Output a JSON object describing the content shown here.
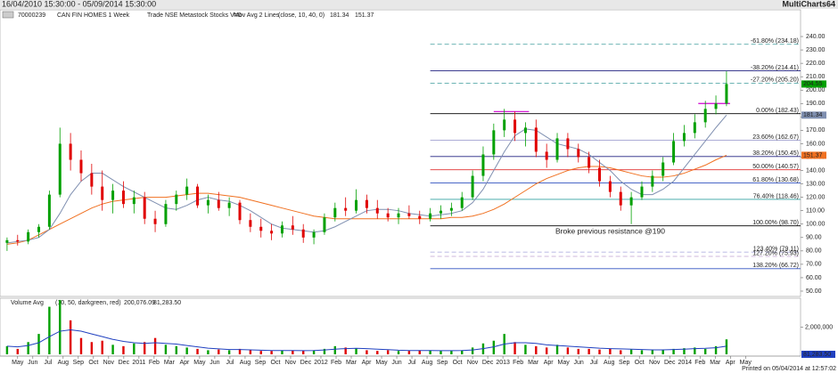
{
  "header": {
    "range": "16/04/2010 15:30:00 - 05/09/2014 15:30:00",
    "app": "MultiCharts64"
  },
  "footer": "Printed on 05/04/2014 at 12:57:02",
  "chart_data": {
    "type": "candlestick",
    "legend": {
      "id": "70000239",
      "symbol": "CAN FIN HOMES 1 Week",
      "source": "Trade NSE Metastock Stocks V=0",
      "study": "Mov Avg 2 Lines",
      "params": "(close, 10, 40, 0)"
    },
    "annotation": "Broke previous resistance @190",
    "xlim": [
      0,
      227
    ],
    "xticks": [
      {
        "value": 5,
        "label": "May"
      },
      {
        "value": 9.3,
        "label": "Jun"
      },
      {
        "value": 13.6,
        "label": "Jul"
      },
      {
        "value": 17.9,
        "label": "Aug"
      },
      {
        "value": 22.2,
        "label": "Sep"
      },
      {
        "value": 26.5,
        "label": "Oct"
      },
      {
        "value": 30.8,
        "label": "Nov"
      },
      {
        "value": 35.1,
        "label": "Dec"
      },
      {
        "value": 39.4,
        "label": "2011"
      },
      {
        "value": 43.7,
        "label": "Feb"
      },
      {
        "value": 48,
        "label": "Mar"
      },
      {
        "value": 52.3,
        "label": "Apr"
      },
      {
        "value": 56.6,
        "label": "May"
      },
      {
        "value": 60.9,
        "label": "Jun"
      },
      {
        "value": 65.2,
        "label": "Jul"
      },
      {
        "value": 69.5,
        "label": "Aug"
      },
      {
        "value": 73.8,
        "label": "Sep"
      },
      {
        "value": 78.1,
        "label": "Oct"
      },
      {
        "value": 82.4,
        "label": "Nov"
      },
      {
        "value": 86.7,
        "label": "Dec"
      },
      {
        "value": 91,
        "label": "2012"
      },
      {
        "value": 95.3,
        "label": "Feb"
      },
      {
        "value": 99.6,
        "label": "Mar"
      },
      {
        "value": 103.9,
        "label": "Apr"
      },
      {
        "value": 108.2,
        "label": "May"
      },
      {
        "value": 112.5,
        "label": "Jun"
      },
      {
        "value": 116.8,
        "label": "Jul"
      },
      {
        "value": 121.1,
        "label": "Aug"
      },
      {
        "value": 125.4,
        "label": "Sep"
      },
      {
        "value": 129.7,
        "label": "Oct"
      },
      {
        "value": 134,
        "label": "Nov"
      },
      {
        "value": 138.3,
        "label": "Dec"
      },
      {
        "value": 142.6,
        "label": "2013"
      },
      {
        "value": 146.9,
        "label": "Feb"
      },
      {
        "value": 151.2,
        "label": "Mar"
      },
      {
        "value": 155.5,
        "label": "Apr"
      },
      {
        "value": 159.8,
        "label": "May"
      },
      {
        "value": 164.1,
        "label": "Jun"
      },
      {
        "value": 168.4,
        "label": "Jul"
      },
      {
        "value": 172.7,
        "label": "Aug"
      },
      {
        "value": 177,
        "label": "Sep"
      },
      {
        "value": 181.3,
        "label": "Oct"
      },
      {
        "value": 185.6,
        "label": "Nov"
      },
      {
        "value": 189.9,
        "label": "Dec"
      },
      {
        "value": 194.2,
        "label": "2014"
      },
      {
        "value": 198.5,
        "label": "Feb"
      },
      {
        "value": 202.8,
        "label": "Mar"
      },
      {
        "value": 207.1,
        "label": "Apr"
      },
      {
        "value": 211.4,
        "label": "May"
      }
    ],
    "ylim": [
      50,
      245
    ],
    "yticks": [
      {
        "value": 240,
        "label": "240.00"
      },
      {
        "value": 230,
        "label": "230.00"
      },
      {
        "value": 220,
        "label": "220.00"
      },
      {
        "value": 210,
        "label": "210.00"
      },
      {
        "value": 200,
        "label": "200.00"
      },
      {
        "value": 190,
        "label": "190.00"
      },
      {
        "value": 180,
        "label": "180.00"
      },
      {
        "value": 170,
        "label": "170.00"
      },
      {
        "value": 160,
        "label": "160.00"
      },
      {
        "value": 150,
        "label": "150.00"
      },
      {
        "value": 140,
        "label": "140.00"
      },
      {
        "value": 130,
        "label": "130.00"
      },
      {
        "value": 120,
        "label": "120.00"
      },
      {
        "value": 110,
        "label": "110.00"
      },
      {
        "value": 100,
        "label": "100.00"
      },
      {
        "value": 90,
        "label": "90.00"
      },
      {
        "value": 80,
        "label": "80.00"
      },
      {
        "value": 70,
        "label": "70.00"
      },
      {
        "value": 60,
        "label": "60.00"
      },
      {
        "value": 50,
        "label": "50.00"
      }
    ],
    "up_color": "#00a000",
    "down_color": "#e00000",
    "x": [
      2,
      5,
      8,
      11,
      14,
      17,
      20,
      23,
      26,
      29,
      32,
      35,
      38,
      41,
      44,
      47,
      50,
      53,
      56,
      59,
      62,
      65,
      68,
      71,
      74,
      77,
      80,
      83,
      86,
      89,
      92,
      95,
      98,
      101,
      104,
      107,
      110,
      113,
      116,
      119,
      122,
      125,
      128,
      131,
      134,
      137,
      140,
      143,
      146,
      149,
      152,
      155,
      158,
      161,
      164,
      167,
      170,
      173,
      176,
      179,
      182,
      185,
      188,
      191,
      194,
      197,
      200,
      203,
      206
    ],
    "open": [
      86,
      88,
      87,
      94,
      98,
      122,
      160,
      148,
      138,
      128,
      118,
      125,
      115,
      120,
      104,
      100,
      115,
      122,
      128,
      114,
      118,
      112,
      116,
      103,
      98,
      95,
      93,
      99,
      96,
      90,
      94,
      105,
      112,
      110,
      118,
      112,
      108,
      105,
      108,
      106,
      104,
      108,
      110,
      112,
      120,
      136,
      152,
      170,
      178,
      168,
      172,
      154,
      148,
      164,
      156,
      150,
      142,
      132,
      124,
      114,
      120,
      128,
      136,
      146,
      162,
      168,
      176,
      186,
      190
    ],
    "high": [
      90,
      92,
      96,
      100,
      125,
      172,
      168,
      155,
      145,
      140,
      130,
      132,
      125,
      124,
      110,
      118,
      125,
      134,
      130,
      122,
      124,
      120,
      118,
      108,
      104,
      100,
      102,
      106,
      100,
      96,
      108,
      116,
      120,
      126,
      122,
      118,
      112,
      112,
      114,
      110,
      112,
      114,
      116,
      124,
      140,
      158,
      175,
      186,
      184,
      176,
      178,
      160,
      168,
      168,
      160,
      154,
      148,
      136,
      128,
      124,
      132,
      140,
      150,
      168,
      174,
      182,
      192,
      196,
      214
    ],
    "low": [
      80,
      84,
      85,
      90,
      96,
      120,
      140,
      132,
      122,
      110,
      108,
      112,
      108,
      100,
      94,
      98,
      110,
      118,
      112,
      108,
      110,
      106,
      100,
      94,
      90,
      88,
      90,
      92,
      86,
      85,
      92,
      102,
      106,
      108,
      108,
      104,
      102,
      100,
      104,
      100,
      102,
      104,
      106,
      110,
      118,
      132,
      148,
      165,
      162,
      158,
      150,
      142,
      146,
      150,
      146,
      138,
      128,
      120,
      110,
      100,
      118,
      124,
      132,
      144,
      158,
      164,
      172,
      182,
      188
    ],
    "close": [
      88,
      87,
      94,
      98,
      122,
      160,
      148,
      138,
      128,
      118,
      125,
      115,
      120,
      104,
      100,
      115,
      122,
      128,
      114,
      118,
      112,
      116,
      103,
      98,
      95,
      93,
      99,
      96,
      90,
      94,
      105,
      112,
      110,
      118,
      112,
      108,
      105,
      108,
      106,
      104,
      108,
      110,
      112,
      120,
      136,
      152,
      170,
      178,
      168,
      172,
      154,
      148,
      164,
      156,
      150,
      142,
      132,
      124,
      114,
      120,
      128,
      136,
      146,
      162,
      168,
      176,
      186,
      190,
      204.55
    ],
    "ma_fast": {
      "color": "#7f8fb0",
      "values": [
        86,
        87,
        88,
        90,
        96,
        108,
        122,
        132,
        138,
        138,
        133,
        128,
        124,
        120,
        116,
        112,
        111,
        114,
        118,
        120,
        118,
        117,
        114,
        110,
        105,
        100,
        97,
        96,
        95,
        94,
        95,
        98,
        102,
        106,
        110,
        111,
        111,
        110,
        108,
        107,
        106,
        107,
        108,
        110,
        116,
        126,
        140,
        154,
        166,
        171,
        170,
        165,
        160,
        158,
        156,
        152,
        146,
        140,
        132,
        126,
        122,
        122,
        126,
        132,
        142,
        152,
        162,
        172,
        181.34
      ]
    },
    "ma_slow": {
      "color": "#f07020",
      "values": [
        85,
        86,
        88,
        92,
        96,
        100,
        104,
        108,
        112,
        115,
        117,
        118,
        119,
        120,
        120,
        120,
        121,
        122,
        123,
        123,
        122,
        121,
        120,
        118,
        116,
        114,
        112,
        110,
        108,
        106,
        105,
        104,
        104,
        104,
        104,
        104,
        104,
        104,
        104,
        104,
        104,
        104,
        105,
        105,
        106,
        108,
        111,
        115,
        120,
        125,
        130,
        134,
        137,
        140,
        142,
        143,
        143,
        142,
        140,
        138,
        136,
        135,
        135,
        136,
        138,
        141,
        144,
        148,
        151.37
      ]
    },
    "fib_start": 122,
    "fib_levels": [
      {
        "label": "-61.80% (234.18)",
        "value": 234.18,
        "color": "#3a9a9a",
        "dashed": true
      },
      {
        "label": "-38.20% (214.41)",
        "value": 214.41,
        "color": "#202080",
        "dashed": false
      },
      {
        "label": "-27.20% (205.20)",
        "value": 205.2,
        "color": "#3a9a9a",
        "dashed": true
      },
      {
        "label": "0.00% (182.43)",
        "value": 182.43,
        "color": "#000000",
        "dashed": false
      },
      {
        "label": "23.60% (162.67)",
        "value": 162.67,
        "color": "#a0a0d0",
        "dashed": false
      },
      {
        "label": "38.20% (150.45)",
        "value": 150.45,
        "color": "#202080",
        "dashed": false
      },
      {
        "label": "50.00% (140.57)",
        "value": 140.57,
        "color": "#e03030",
        "dashed": false
      },
      {
        "label": "61.80% (130.68)",
        "value": 130.68,
        "color": "#3050c0",
        "dashed": false
      },
      {
        "label": "76.40% (118.46)",
        "value": 118.46,
        "color": "#30a0a0",
        "dashed": false
      },
      {
        "label": "100.00% (98.70)",
        "value": 98.7,
        "color": "#000000",
        "dashed": false
      },
      {
        "label": "123.40% (79.11)",
        "value": 79.11,
        "color": "#b0b0e0",
        "dashed": true
      },
      {
        "label": "127.20% (75.93)",
        "value": 75.93,
        "color": "#c0a0d0",
        "dashed": true
      },
      {
        "label": "138.20% (66.72)",
        "value": 66.72,
        "color": "#3050c0",
        "dashed": false
      }
    ],
    "resistance_color": "#d000d0",
    "resistance_lines": [
      {
        "value": 184,
        "x": [
          140,
          150
        ]
      },
      {
        "value": 190,
        "x": [
          198,
          207
        ]
      }
    ],
    "volume": {
      "legend": "Volume Avg",
      "params": "(10, 50, darkgreen, red)",
      "avg_fast": "200,076.09",
      "avg_slow": "81,283.50",
      "ylim": [
        0,
        3800000
      ],
      "yticks": [
        {
          "value": 2000000,
          "label": "2,000,000"
        }
      ],
      "values": [
        600000,
        400000,
        900000,
        1500000,
        3500000,
        4000000,
        2500000,
        1200000,
        900000,
        1000000,
        700000,
        600000,
        800000,
        900000,
        1200000,
        700000,
        600000,
        500000,
        400000,
        300000,
        350000,
        300000,
        400000,
        300000,
        250000,
        250000,
        300000,
        280000,
        250000,
        300000,
        400000,
        600000,
        500000,
        450000,
        300000,
        250000,
        300000,
        250000,
        250000,
        300000,
        300000,
        250000,
        250000,
        300000,
        500000,
        800000,
        1000000,
        1500000,
        900000,
        700000,
        600000,
        500000,
        700000,
        500000,
        400000,
        400000,
        350000,
        400000,
        300000,
        350000,
        300000,
        300000,
        350000,
        400000,
        450000,
        500000,
        400000,
        600000,
        1100000
      ],
      "avg": {
        "color": "#2040c0",
        "values": [
          600000,
          550000,
          650000,
          850000,
          1300000,
          1700000,
          1800000,
          1700000,
          1500000,
          1300000,
          1100000,
          950000,
          850000,
          800000,
          850000,
          800000,
          750000,
          650000,
          550000,
          450000,
          400000,
          350000,
          350000,
          330000,
          300000,
          280000,
          280000,
          280000,
          270000,
          280000,
          320000,
          380000,
          420000,
          440000,
          420000,
          380000,
          340000,
          300000,
          280000,
          280000,
          280000,
          270000,
          270000,
          280000,
          320000,
          420000,
          550000,
          750000,
          850000,
          850000,
          800000,
          700000,
          650000,
          600000,
          550000,
          500000,
          450000,
          420000,
          400000,
          380000,
          350000,
          330000,
          330000,
          350000,
          380000,
          420000,
          440000,
          480000,
          600000
        ]
      }
    }
  }
}
